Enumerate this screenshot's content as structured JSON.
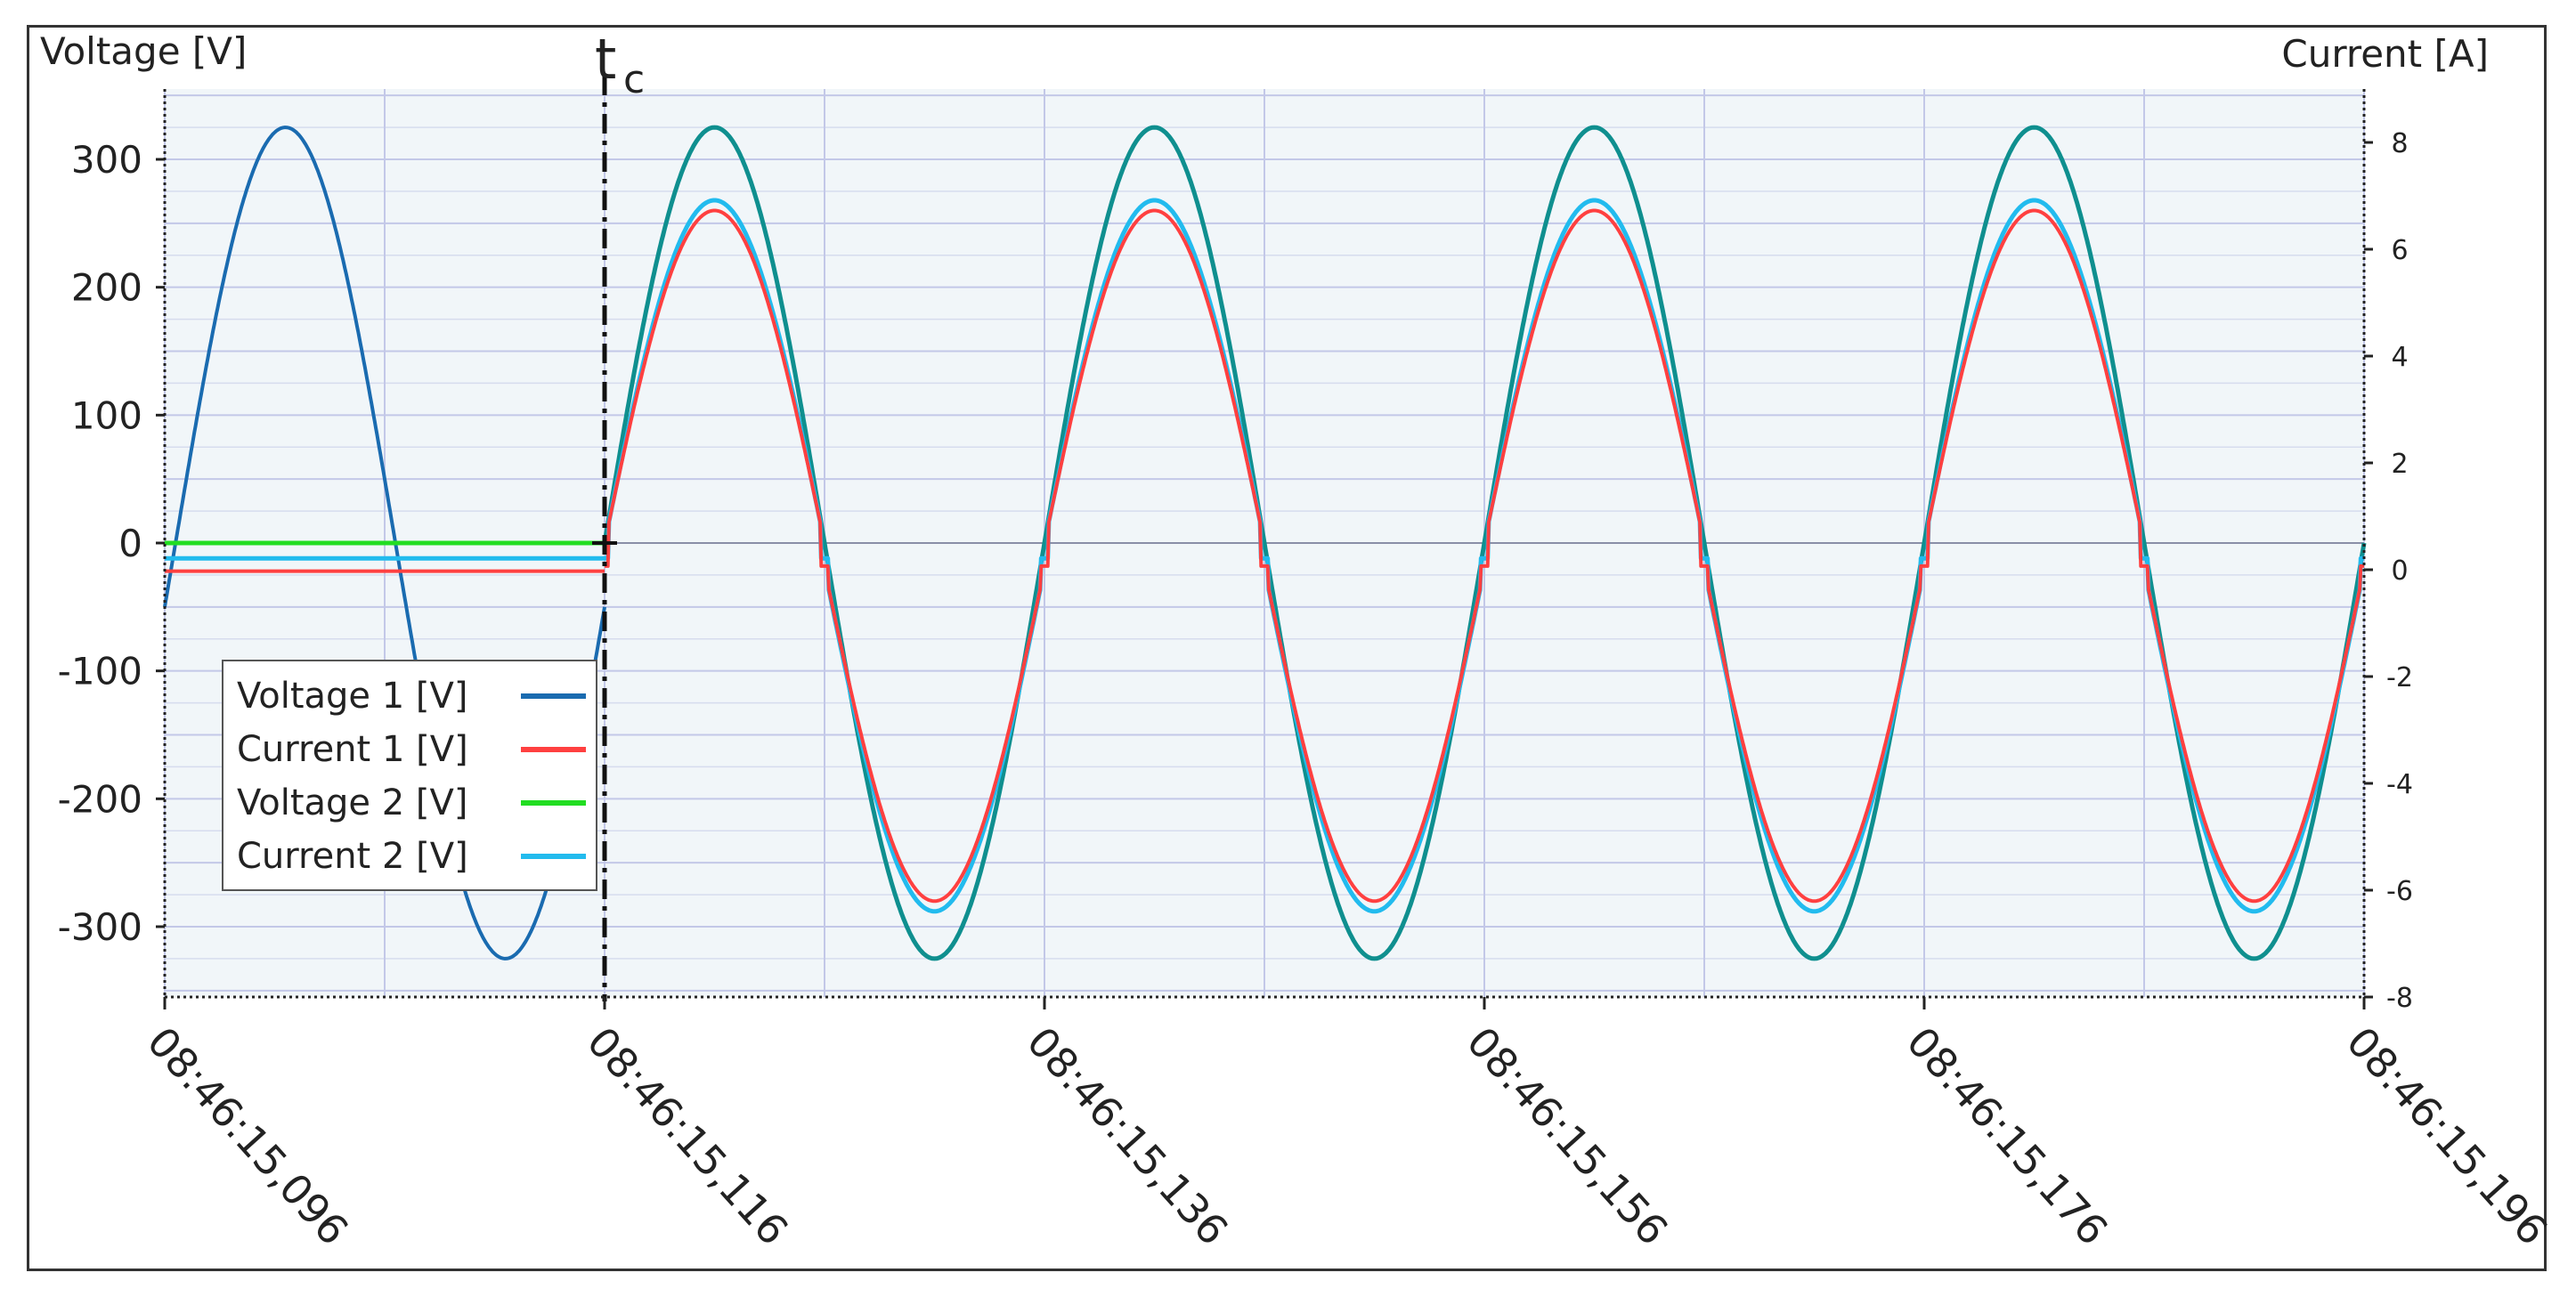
{
  "chart_data": {
    "type": "line",
    "ylabel_left": "Voltage [V]",
    "ylabel_right": "Current [A]",
    "marker_label": {
      "main": "t",
      "sub": "c"
    },
    "marker_x": "08:46:15,116",
    "x_tick_labels": [
      "08:46:15,096",
      "08:46:15,116",
      "08:46:15,136",
      "08:46:15,156",
      "08:46:15,176",
      "08:46:15,196"
    ],
    "x_range_ms": [
      96,
      196
    ],
    "left_axis": {
      "ticks": [
        300,
        200,
        100,
        0,
        -100,
        -200,
        -300
      ],
      "tick_labels": [
        "300",
        "200",
        "100",
        "0",
        "-100",
        "-200",
        "-300"
      ],
      "ylim": [
        -355,
        355
      ]
    },
    "right_axis": {
      "ticks": [
        8,
        6,
        4,
        2,
        0,
        -2,
        -4,
        -6,
        -8
      ],
      "tick_labels": [
        "8",
        "6",
        "4",
        "2",
        "0",
        "-2",
        "-4",
        "-6",
        "-8"
      ],
      "ylim": [
        -8,
        9
      ]
    },
    "grid": true,
    "legend": {
      "placement": "bottom-left",
      "entries": [
        "Voltage 1 [V]",
        "Current 1 [V]",
        "Voltage 2 [V]",
        "Current 2 [V]"
      ]
    },
    "series": [
      {
        "name": "Voltage 1 [V]",
        "color": "#1a6bb0",
        "t_ms": [
          96,
          101,
          106,
          111,
          116
        ],
        "values": [
          -50,
          325,
          0,
          -325,
          0
        ],
        "waveform": "sine",
        "amplitude_V": 325,
        "frequency_Hz": 50
      },
      {
        "name": "Current 1 [V]",
        "color": "#ff4040",
        "segments": [
          {
            "t_ms": [
              96,
              116
            ],
            "values": [
              -22,
              -22
            ]
          },
          {
            "t_ms": [
              116,
              121,
              126,
              131
            ],
            "values": [
              -18,
              258,
              -20,
              -298
            ],
            "waveform": "sine",
            "amplitude_V": 260,
            "frequency_Hz": 50
          }
        ]
      },
      {
        "name": "Voltage 2 [V]",
        "color": "#22dd22",
        "segments": [
          {
            "t_ms": [
              96,
              116
            ],
            "values": [
              0,
              0
            ]
          },
          {
            "t_ms": [
              116,
              121,
              126,
              131
            ],
            "values": [
              0,
              325,
              0,
              -325
            ],
            "waveform": "sine",
            "amplitude_V": 325,
            "frequency_Hz": 50,
            "color_after_switch": "#0f8f8f"
          }
        ]
      },
      {
        "name": "Current 2 [V]",
        "color": "#22bbee",
        "segments": [
          {
            "t_ms": [
              96,
              116
            ],
            "values": [
              -12,
              -12
            ]
          },
          {
            "t_ms": [
              116,
              121,
              126,
              131
            ],
            "values": [
              -12,
              265,
              -12,
              -285
            ],
            "waveform": "sine",
            "amplitude_V": 268,
            "frequency_Hz": 50
          }
        ]
      }
    ]
  },
  "colors": {
    "plot_background": "#f1f6f9",
    "grid_major": "#c3c8e8",
    "grid_minor": "#d6dcee",
    "voltage1": "#1a6bb0",
    "current1": "#ff4040",
    "voltage2_pre": "#22dd22",
    "voltage2_post": "#0f8f8f",
    "current2": "#22bbee",
    "marker": "#111111"
  }
}
